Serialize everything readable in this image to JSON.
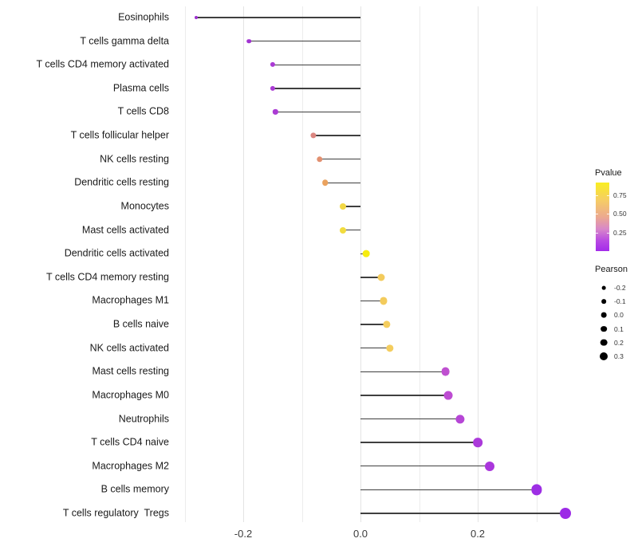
{
  "chart_data": {
    "type": "scatter",
    "variant": "lollipop",
    "orientation": "horizontal",
    "title": "",
    "xlabel": "",
    "ylabel": "",
    "xlim": [
      -0.31,
      0.38
    ],
    "grid": "vertical-only",
    "gridline_values": [
      -0.3,
      -0.2,
      -0.1,
      0.0,
      0.1,
      0.2,
      0.3
    ],
    "x_ticks": [
      {
        "value": -0.2,
        "label": "-0.2"
      },
      {
        "value": 0.0,
        "label": "0.0"
      },
      {
        "value": 0.2,
        "label": "0.2"
      }
    ],
    "points": [
      {
        "label": "Eosinophils",
        "pearson": -0.28,
        "color": "#9c30ce",
        "d": 4.0
      },
      {
        "label": "T cells gamma delta",
        "pearson": -0.19,
        "color": "#a133d2",
        "d": 5.6
      },
      {
        "label": "T cells CD4 memory activated",
        "pearson": -0.15,
        "color": "#aa3ad4",
        "d": 6.2
      },
      {
        "label": "Plasma cells",
        "pearson": -0.15,
        "color": "#aa3ad4",
        "d": 6.2
      },
      {
        "label": "T cells CD8",
        "pearson": -0.145,
        "color": "#ab3bd4",
        "d": 6.3
      },
      {
        "label": "T cells follicular helper",
        "pearson": -0.08,
        "color": "#db8680",
        "d": 7.2
      },
      {
        "label": "NK cells resting",
        "pearson": -0.07,
        "color": "#e29070",
        "d": 7.4
      },
      {
        "label": "Dendritic cells resting",
        "pearson": -0.06,
        "color": "#eaa25e",
        "d": 7.6
      },
      {
        "label": "Monocytes",
        "pearson": -0.03,
        "color": "#f2d846",
        "d": 8.0
      },
      {
        "label": "Mast cells activated",
        "pearson": -0.03,
        "color": "#f2dc3e",
        "d": 8.0
      },
      {
        "label": "Dendritic cells activated",
        "pearson": 0.01,
        "color": "#f6ec10",
        "d": 8.7
      },
      {
        "label": "T cells CD4 memory resting",
        "pearson": 0.035,
        "color": "#f3cb5c",
        "d": 9.0
      },
      {
        "label": "Macrophages M1",
        "pearson": 0.04,
        "color": "#f3cb5c",
        "d": 9.1
      },
      {
        "label": "B cells naive",
        "pearson": 0.045,
        "color": "#f4cd5e",
        "d": 9.2
      },
      {
        "label": "NK cells activated",
        "pearson": 0.05,
        "color": "#f4cd5e",
        "d": 9.3
      },
      {
        "label": "Mast cells resting",
        "pearson": 0.145,
        "color": "#bf50d0",
        "d": 10.8
      },
      {
        "label": "Macrophages M0",
        "pearson": 0.15,
        "color": "#bd4cd2",
        "d": 10.9
      },
      {
        "label": "Neutrophils",
        "pearson": 0.17,
        "color": "#b646d6",
        "d": 11.2
      },
      {
        "label": "T cells CD4 naive",
        "pearson": 0.2,
        "color": "#ab3ada",
        "d": 11.7
      },
      {
        "label": "Macrophages M2",
        "pearson": 0.22,
        "color": "#aa36dc",
        "d": 12.0
      },
      {
        "label": "B cells memory",
        "pearson": 0.3,
        "color": "#9d2ee4",
        "d": 13.2
      },
      {
        "label": "T cells regulatory  Tregs",
        "pearson": 0.35,
        "color": "#9c2be6",
        "d": 14.0
      }
    ],
    "legend_pvalue": {
      "title": "Pvalue",
      "tick_labels": [
        "0.75",
        "0.50",
        "0.25"
      ],
      "gradient_top_to_bottom": [
        "#f9ee21",
        "#f6ce63",
        "#eca98f",
        "#d887c9",
        "#b84ae3",
        "#a32bea"
      ],
      "gradient_positions": [
        0,
        0.25,
        0.5,
        0.68,
        0.85,
        1
      ]
    },
    "legend_pearson": {
      "title": "Pearson",
      "entries": [
        {
          "label": "-0.2",
          "d": 4.7
        },
        {
          "label": "-0.1",
          "d": 5.7
        },
        {
          "label": "0.0",
          "d": 6.7
        },
        {
          "label": "0.1",
          "d": 7.7
        },
        {
          "label": "0.2",
          "d": 8.7
        },
        {
          "label": "0.3",
          "d": 10.0
        }
      ],
      "dot_color": "#000000"
    },
    "stem_color": "#3f3f3f",
    "background": "#ffffff"
  }
}
